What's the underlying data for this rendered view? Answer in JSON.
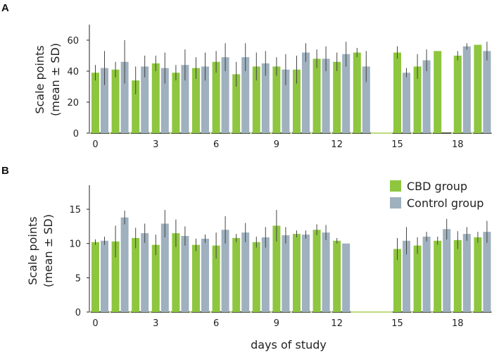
{
  "chart_data": [
    {
      "panel": "A",
      "type": "bar",
      "ylabel_line1": "Scale points",
      "ylabel_line2": "(mean ± SD)",
      "xlabel": "",
      "ylim": [
        0,
        70
      ],
      "yticks": [
        0,
        20,
        40,
        60
      ],
      "days": [
        0,
        1,
        2,
        3,
        4,
        5,
        6,
        7,
        8,
        9,
        10,
        11,
        12,
        13,
        14,
        15,
        16,
        17,
        18,
        19
      ],
      "xtick_days": [
        0,
        3,
        6,
        9,
        12,
        15,
        18
      ],
      "series": [
        {
          "name": "CBD group",
          "values": [
            39,
            41,
            34,
            45,
            39,
            42,
            46,
            38,
            43,
            43,
            41,
            48,
            46,
            52,
            null,
            52,
            43,
            53,
            50,
            57
          ],
          "sd": [
            5,
            5,
            9,
            5,
            5,
            7,
            7,
            8,
            9,
            6,
            9,
            6,
            6,
            3,
            null,
            4,
            8,
            0,
            3,
            0
          ]
        },
        {
          "name": "Control group",
          "values": [
            42,
            46,
            43,
            42,
            44,
            43,
            49,
            49,
            45,
            41,
            52,
            48,
            51,
            43,
            null,
            39,
            47,
            null,
            56,
            53
          ],
          "sd": [
            11,
            14,
            7,
            10,
            10,
            9,
            9,
            9,
            8,
            10,
            6,
            8,
            8,
            10,
            null,
            3,
            7,
            null,
            2,
            6
          ]
        }
      ]
    },
    {
      "panel": "B",
      "type": "bar",
      "ylabel_line1": "Scale points",
      "ylabel_line2": "(mean ± SD)",
      "xlabel": "days of study",
      "ylim": [
        0,
        18.5
      ],
      "yticks": [
        0,
        5,
        10,
        15
      ],
      "days": [
        0,
        1,
        2,
        3,
        4,
        5,
        6,
        7,
        8,
        9,
        10,
        11,
        12,
        13,
        14,
        15,
        16,
        17,
        18,
        19
      ],
      "xtick_days": [
        0,
        3,
        6,
        9,
        12,
        15,
        18
      ],
      "series": [
        {
          "name": "CBD group",
          "values": [
            10.2,
            10.3,
            10.8,
            9.8,
            11.5,
            9.8,
            9.7,
            10.8,
            10.2,
            12.6,
            11.4,
            12.0,
            10.4,
            null,
            null,
            9.2,
            9.7,
            10.4,
            10.5,
            10.9
          ],
          "sd": [
            0.4,
            2.3,
            1.5,
            1.5,
            2.0,
            0.9,
            1.9,
            0.6,
            0.8,
            2.3,
            0.5,
            0.8,
            0.4,
            null,
            null,
            1.6,
            1.2,
            0.6,
            1.3,
            0.8
          ]
        },
        {
          "name": "Control group",
          "values": [
            10.4,
            13.8,
            11.5,
            12.9,
            11.1,
            10.7,
            12.0,
            11.6,
            10.9,
            11.2,
            11.3,
            11.6,
            10.0,
            null,
            null,
            10.4,
            11.0,
            12.1,
            11.4,
            11.7
          ],
          "sd": [
            0.6,
            1.0,
            1.4,
            2.0,
            1.4,
            0.6,
            2.0,
            1.4,
            1.5,
            1.2,
            0.6,
            1.1,
            0,
            null,
            null,
            2.0,
            0.7,
            1.5,
            1.0,
            1.6
          ]
        }
      ]
    }
  ],
  "legend": {
    "entries": [
      {
        "label": "CBD group",
        "color": "#8ec63f"
      },
      {
        "label": "Control group",
        "color": "#9fb0be"
      }
    ]
  },
  "colors": {
    "cbd": "#8ec63f",
    "control": "#9fb0be",
    "axis": "#222222",
    "baseline_gap": "#a5d150",
    "error_bar": "#444444"
  }
}
